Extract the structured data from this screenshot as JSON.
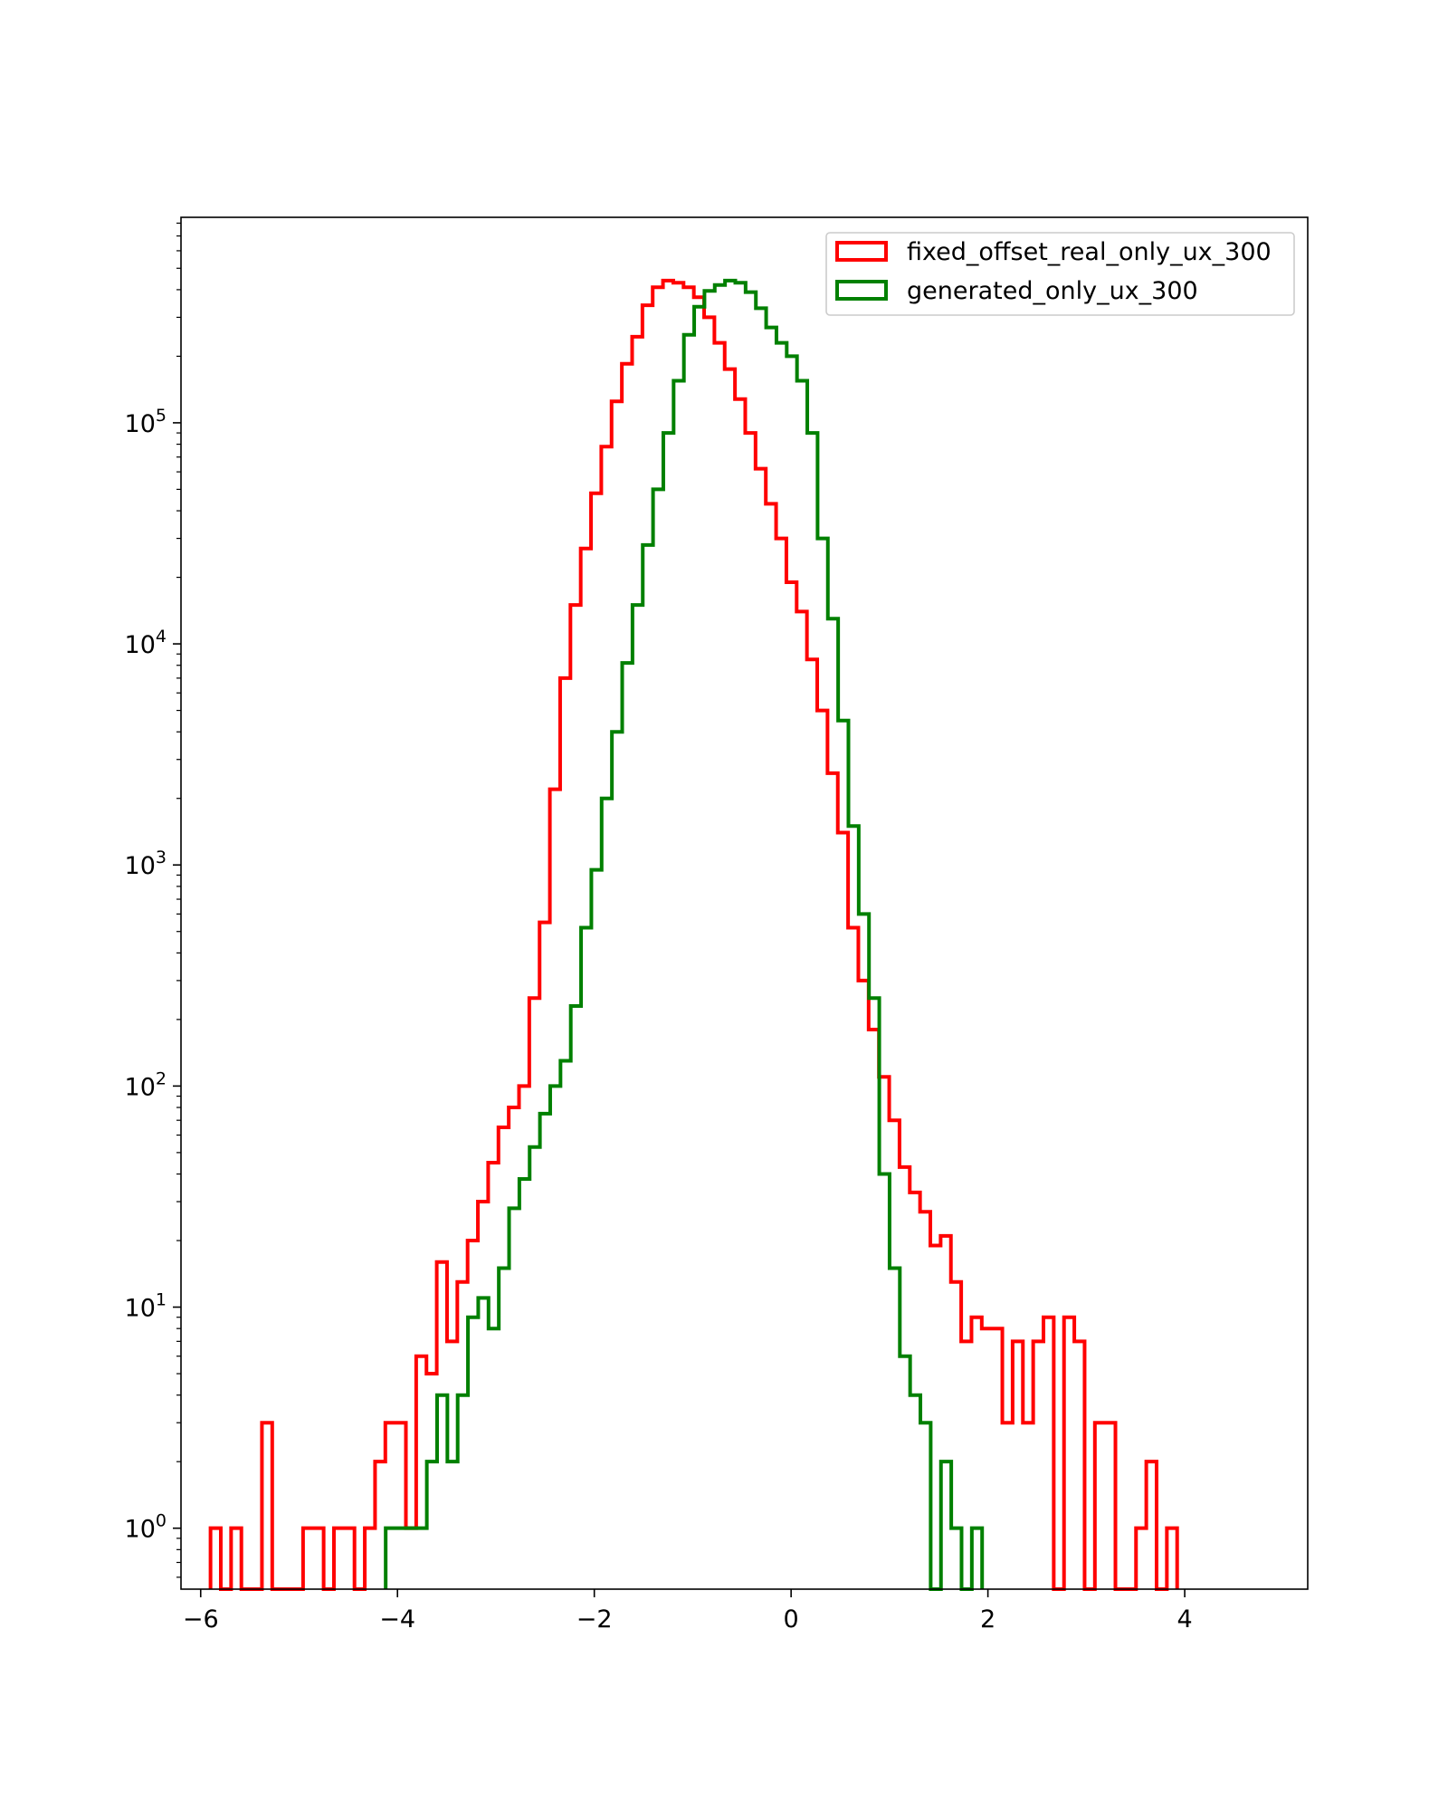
{
  "chart_data": {
    "type": "histogram",
    "yscale": "log",
    "xlim": [
      -6.2,
      5.25
    ],
    "ylim": [
      0.53,
      850000
    ],
    "grid": false,
    "legend_position": "top-right",
    "xticks": [
      {
        "value": -6,
        "label": "−6"
      },
      {
        "value": -4,
        "label": "−4"
      },
      {
        "value": -2,
        "label": "−2"
      },
      {
        "value": 0,
        "label": "0"
      },
      {
        "value": 2,
        "label": "2"
      },
      {
        "value": 4,
        "label": "4"
      }
    ],
    "yticks": [
      {
        "value": 1,
        "base": "10",
        "exp": "0"
      },
      {
        "value": 10,
        "base": "10",
        "exp": "1"
      },
      {
        "value": 100,
        "base": "10",
        "exp": "2"
      },
      {
        "value": 1000,
        "base": "10",
        "exp": "3"
      },
      {
        "value": 10000,
        "base": "10",
        "exp": "4"
      },
      {
        "value": 100000,
        "base": "10",
        "exp": "5"
      }
    ],
    "series": [
      {
        "name": "fixed_offset_real_only_ux_300",
        "color": "#ff0000",
        "bin_start": -5.9,
        "bin_width": 0.1045,
        "counts": [
          1,
          0,
          1,
          0,
          0,
          3,
          0,
          0,
          0,
          1,
          1,
          0,
          1,
          1,
          0,
          1,
          2,
          3,
          3,
          1,
          6,
          5,
          16,
          7,
          13,
          20,
          30,
          45,
          65,
          80,
          100,
          250,
          550,
          2200,
          7000,
          15000,
          27000,
          48000,
          78000,
          125000,
          185000,
          245000,
          340000,
          410000,
          440000,
          430000,
          410000,
          370000,
          300000,
          230000,
          175000,
          128000,
          90000,
          62000,
          43000,
          30000,
          19000,
          14000,
          8500,
          5000,
          2600,
          1400,
          520,
          300,
          180,
          110,
          70,
          43,
          33,
          27,
          19,
          21,
          13,
          7,
          9,
          8,
          8,
          3,
          7,
          3,
          7,
          9,
          0,
          9,
          7,
          0,
          3,
          3,
          0,
          0,
          1,
          2,
          0,
          1
        ]
      },
      {
        "name": "generated_only_ux_300",
        "color": "#008000",
        "bin_start": -4.12,
        "bin_width": 0.1045,
        "counts": [
          1,
          1,
          1,
          1,
          2,
          4,
          2,
          4,
          9,
          11,
          8,
          15,
          28,
          38,
          53,
          75,
          100,
          130,
          230,
          520,
          950,
          2000,
          4000,
          8200,
          15000,
          28000,
          50000,
          90000,
          155000,
          250000,
          335000,
          395000,
          420000,
          440000,
          430000,
          390000,
          330000,
          270000,
          230000,
          200000,
          155000,
          90000,
          30000,
          13000,
          4500,
          1500,
          600,
          250,
          40,
          15,
          6,
          4,
          3,
          0,
          2,
          1,
          0,
          1
        ]
      }
    ]
  }
}
